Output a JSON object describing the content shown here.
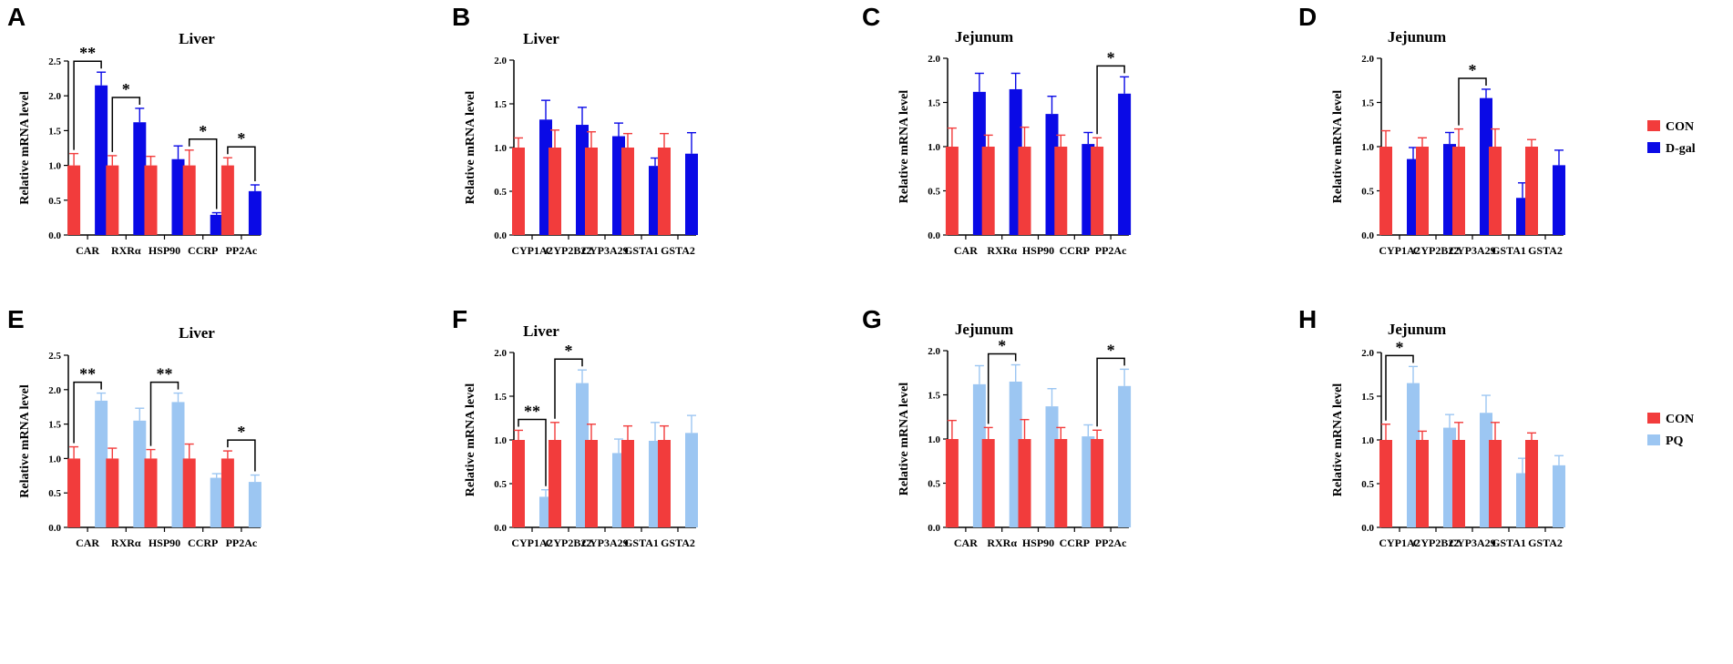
{
  "colors": {
    "con": "#f23c3c",
    "dgal": "#0a0ae6",
    "pq": "#9cc6f2",
    "axis": "#000000"
  },
  "legends": [
    {
      "entries": [
        {
          "label": "CON",
          "color": "#f23c3c"
        },
        {
          "label": "D-gal",
          "color": "#0a0ae6"
        }
      ]
    },
    {
      "entries": [
        {
          "label": "CON",
          "color": "#f23c3c"
        },
        {
          "label": "PQ",
          "color": "#9cc6f2"
        }
      ]
    }
  ],
  "chart_data": [
    {
      "panel": "A",
      "type": "bar",
      "title": "Liver",
      "ylabel": "Relative mRNA level",
      "ylim": [
        0,
        2.5
      ],
      "ticks": [
        "0.0",
        "0.5",
        "1.0",
        "1.5",
        "2.0",
        "2.5"
      ],
      "categories": [
        "CAR",
        "RXRα",
        "HSP90",
        "CCRP",
        "PP2Ac"
      ],
      "series": [
        {
          "name": "CON",
          "color": "#f23c3c",
          "values": [
            1.0,
            1.0,
            1.0,
            1.0,
            1.0
          ],
          "errors": [
            0.17,
            0.14,
            0.13,
            0.22,
            0.11
          ]
        },
        {
          "name": "D-gal",
          "color": "#0a0ae6",
          "values": [
            2.15,
            1.62,
            1.09,
            0.29,
            0.63
          ],
          "errors": [
            0.19,
            0.2,
            0.19,
            0.03,
            0.09
          ]
        }
      ],
      "significance": [
        {
          "category": 0,
          "label": "**"
        },
        {
          "category": 1,
          "label": "*"
        },
        {
          "category": 3,
          "label": "*"
        },
        {
          "category": 4,
          "label": "*"
        }
      ]
    },
    {
      "panel": "B",
      "type": "bar",
      "title": "Liver",
      "ylabel": "Relative mRNA level",
      "ylim": [
        0,
        2.0
      ],
      "ticks": [
        "0.0",
        "0.5",
        "1.0",
        "1.5",
        "2.0"
      ],
      "categories": [
        "CYP1A2",
        "CYP2B22",
        "CYP3A29",
        "GSTA1",
        "GSTA2"
      ],
      "series": [
        {
          "name": "CON",
          "color": "#f23c3c",
          "values": [
            1.0,
            1.0,
            1.0,
            1.0,
            1.0
          ],
          "errors": [
            0.11,
            0.2,
            0.18,
            0.16,
            0.16
          ]
        },
        {
          "name": "D-gal",
          "color": "#0a0ae6",
          "values": [
            1.32,
            1.26,
            1.13,
            0.79,
            0.93
          ],
          "errors": [
            0.22,
            0.2,
            0.15,
            0.09,
            0.24
          ]
        }
      ],
      "significance": []
    },
    {
      "panel": "C",
      "type": "bar",
      "title": "Jejunum",
      "ylabel": "Relative mRNA level",
      "ylim": [
        0,
        2.0
      ],
      "ticks": [
        "0.0",
        "0.5",
        "1.0",
        "1.5",
        "2.0"
      ],
      "categories": [
        "CAR",
        "RXRα",
        "HSP90",
        "CCRP",
        "PP2Ac"
      ],
      "series": [
        {
          "name": "CON",
          "color": "#f23c3c",
          "values": [
            1.0,
            1.0,
            1.0,
            1.0,
            1.0
          ],
          "errors": [
            0.21,
            0.13,
            0.22,
            0.13,
            0.1
          ]
        },
        {
          "name": "D-gal",
          "color": "#0a0ae6",
          "values": [
            1.62,
            1.65,
            1.37,
            1.03,
            1.6
          ],
          "errors": [
            0.21,
            0.18,
            0.2,
            0.13,
            0.19
          ]
        }
      ],
      "significance": [
        {
          "category": 4,
          "label": "*"
        }
      ]
    },
    {
      "panel": "D",
      "type": "bar",
      "title": "Jejunum",
      "ylabel": "Relative mRNA level",
      "ylim": [
        0,
        2.0
      ],
      "ticks": [
        "0.0",
        "0.5",
        "1.0",
        "1.5",
        "2.0"
      ],
      "categories": [
        "CYP1A2",
        "CYP2B22",
        "CYP3A29",
        "GSTA1",
        "GSTA2"
      ],
      "series": [
        {
          "name": "CON",
          "color": "#f23c3c",
          "values": [
            1.0,
            1.0,
            1.0,
            1.0,
            1.0
          ],
          "errors": [
            0.18,
            0.1,
            0.2,
            0.2,
            0.08
          ]
        },
        {
          "name": "D-gal",
          "color": "#0a0ae6",
          "values": [
            0.86,
            1.03,
            1.55,
            0.42,
            0.79
          ],
          "errors": [
            0.13,
            0.13,
            0.1,
            0.17,
            0.17
          ]
        }
      ],
      "significance": [
        {
          "category": 2,
          "label": "*"
        }
      ]
    },
    {
      "panel": "E",
      "type": "bar",
      "title": "Liver",
      "ylabel": "Relative mRNA level",
      "ylim": [
        0,
        2.5
      ],
      "ticks": [
        "0.0",
        "0.5",
        "1.0",
        "1.5",
        "2.0",
        "2.5"
      ],
      "categories": [
        "CAR",
        "RXRα",
        "HSP90",
        "CCRP",
        "PP2Ac"
      ],
      "series": [
        {
          "name": "CON",
          "color": "#f23c3c",
          "values": [
            1.0,
            1.0,
            1.0,
            1.0,
            1.0
          ],
          "errors": [
            0.17,
            0.15,
            0.13,
            0.21,
            0.11
          ]
        },
        {
          "name": "PQ",
          "color": "#9cc6f2",
          "values": [
            1.84,
            1.55,
            1.82,
            0.72,
            0.66
          ],
          "errors": [
            0.11,
            0.18,
            0.13,
            0.06,
            0.1
          ]
        }
      ],
      "significance": [
        {
          "category": 0,
          "label": "**"
        },
        {
          "category": 2,
          "label": "**"
        },
        {
          "category": 4,
          "label": "*"
        }
      ]
    },
    {
      "panel": "F",
      "type": "bar",
      "title": "Liver",
      "ylabel": "Relative mRNA level",
      "ylim": [
        0,
        2.0
      ],
      "ticks": [
        "0.0",
        "0.5",
        "1.0",
        "1.5",
        "2.0"
      ],
      "categories": [
        "CYP1A2",
        "CYP2B22",
        "CYP3A29",
        "GSTA1",
        "GSTA2"
      ],
      "series": [
        {
          "name": "CON",
          "color": "#f23c3c",
          "values": [
            1.0,
            1.0,
            1.0,
            1.0,
            1.0
          ],
          "errors": [
            0.11,
            0.2,
            0.18,
            0.16,
            0.16
          ]
        },
        {
          "name": "PQ",
          "color": "#9cc6f2",
          "values": [
            0.35,
            1.65,
            0.85,
            0.99,
            1.08
          ],
          "errors": [
            0.08,
            0.15,
            0.16,
            0.21,
            0.2
          ]
        }
      ],
      "significance": [
        {
          "category": 0,
          "label": "**"
        },
        {
          "category": 1,
          "label": "*"
        }
      ]
    },
    {
      "panel": "G",
      "type": "bar",
      "title": "Jejunum",
      "ylabel": "Relative mRNA level",
      "ylim": [
        0,
        2.0
      ],
      "ticks": [
        "0.0",
        "0.5",
        "1.0",
        "1.5",
        "2.0"
      ],
      "categories": [
        "CAR",
        "RXRα",
        "HSP90",
        "CCRP",
        "PP2Ac"
      ],
      "series": [
        {
          "name": "CON",
          "color": "#f23c3c",
          "values": [
            1.0,
            1.0,
            1.0,
            1.0,
            1.0
          ],
          "errors": [
            0.21,
            0.13,
            0.22,
            0.13,
            0.1
          ]
        },
        {
          "name": "PQ",
          "color": "#9cc6f2",
          "values": [
            1.62,
            1.65,
            1.37,
            1.03,
            1.6
          ],
          "errors": [
            0.21,
            0.19,
            0.2,
            0.13,
            0.19
          ]
        }
      ],
      "significance": [
        {
          "category": 1,
          "label": "*"
        },
        {
          "category": 4,
          "label": "*"
        }
      ]
    },
    {
      "panel": "H",
      "type": "bar",
      "title": "Jejunum",
      "ylabel": "Relative mRNA level",
      "ylim": [
        0,
        2.0
      ],
      "ticks": [
        "0.0",
        "0.5",
        "1.0",
        "1.5",
        "2.0"
      ],
      "categories": [
        "CYP1A2",
        "CYP2B22",
        "CYP3A29",
        "GSTA1",
        "GSTA2"
      ],
      "series": [
        {
          "name": "CON",
          "color": "#f23c3c",
          "values": [
            1.0,
            1.0,
            1.0,
            1.0,
            1.0
          ],
          "errors": [
            0.18,
            0.1,
            0.2,
            0.2,
            0.08
          ]
        },
        {
          "name": "PQ",
          "color": "#9cc6f2",
          "values": [
            1.65,
            1.14,
            1.31,
            0.62,
            0.71
          ],
          "errors": [
            0.19,
            0.15,
            0.2,
            0.17,
            0.11
          ]
        }
      ],
      "significance": [
        {
          "category": 0,
          "label": "*"
        }
      ]
    }
  ]
}
